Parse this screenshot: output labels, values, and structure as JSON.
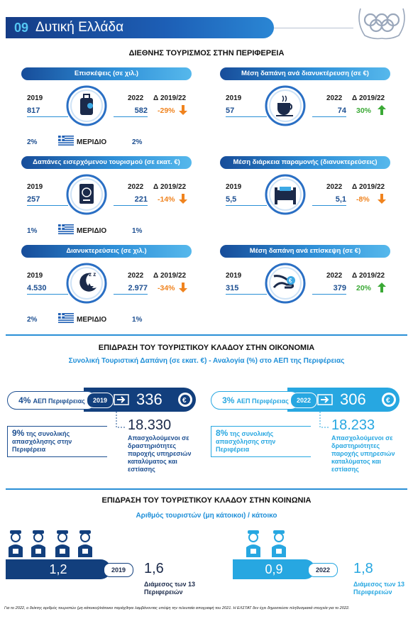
{
  "header": {
    "number": "09",
    "title": "Δυτική Ελλάδα"
  },
  "international": {
    "title": "ΔΙΕΘΝΗΣ ΤΟΥΡΙΣΜΟΣ ΣΤΗΝ ΠΕΡΙΦΕΡΕΙΑ",
    "cards": [
      {
        "title": "Επισκέψεις (σε χιλ.)",
        "year_a": "2019",
        "value_a": "817",
        "year_b": "2022",
        "value_b": "582",
        "change_label": "Δ 2019/22",
        "change": "-29%",
        "trend": "down",
        "share": {
          "a": "2%",
          "label": "ΜΕΡΙΔΙΟ",
          "b": "2%"
        }
      },
      {
        "title": "Μέση δαπάνη ανά διανυκτέρευση (σε €)",
        "year_a": "2019",
        "value_a": "57",
        "year_b": "2022",
        "value_b": "74",
        "change_label": "Δ 2019/22",
        "change": "30%",
        "trend": "up"
      },
      {
        "title": "Δαπάνες εισερχόμενου τουρισμού (σε εκατ. €)",
        "year_a": "2019",
        "value_a": "257",
        "year_b": "2022",
        "value_b": "221",
        "change_label": "Δ 2019/22",
        "change": "-14%",
        "trend": "down",
        "share": {
          "a": "1%",
          "label": "ΜΕΡΙΔΙΟ",
          "b": "1%"
        }
      },
      {
        "title": "Μέση διάρκεια παραμονής (διανυκτερεύσεις)",
        "year_a": "2019",
        "value_a": "5,5",
        "year_b": "2022",
        "value_b": "5,1",
        "change_label": "Δ 2019/22",
        "change": "-8%",
        "trend": "down"
      },
      {
        "title": "Διανυκτερεύσεις (σε χιλ.)",
        "year_a": "2019",
        "value_a": "4.530",
        "year_b": "2022",
        "value_b": "2.977",
        "change_label": "Δ 2019/22",
        "change": "-34%",
        "trend": "down",
        "share": {
          "a": "2%",
          "label": "ΜΕΡΙΔΙΟ",
          "b": "1%"
        }
      },
      {
        "title": "Μέση δαπάνη ανά επίσκεψη (σε €)",
        "year_a": "2019",
        "value_a": "315",
        "year_b": "2022",
        "value_b": "379",
        "change_label": "Δ 2019/22",
        "change": "20%",
        "trend": "up"
      }
    ]
  },
  "economy": {
    "title": "ΕΠΙΔΡΑΣΗ ΤΟΥ ΤΟΥΡΙΣΤΙΚΟΥ ΚΛΑΔΟΥ ΣΤΗΝ ΟΙΚΟΝΟΜΙΑ",
    "subtitle": "Συνολική Τουριστική Δαπάνη (σε εκατ. €) - Αναλογία (%) στο ΑΕΠ της Περιφέρειας",
    "panels": [
      {
        "gdp_pct": "4%",
        "gdp_label": "ΑΕΠ Περιφέρειας",
        "year": "2019",
        "spending": "336",
        "employment_pct": "9%",
        "employment_text": "της συνολικής απασχόλησης στην Περιφέρεια",
        "employed": "18.330",
        "employed_text": "Απασχολούμενοι σε δραστηριότητες παροχής υπηρεσιών καταλύματος και εστίασης"
      },
      {
        "gdp_pct": "3%",
        "gdp_label": "ΑΕΠ Περιφέρειας",
        "year": "2022",
        "spending": "306",
        "employment_pct": "8%",
        "employment_text": "της συνολικής απασχόλησης στην Περιφέρεια",
        "employed": "18.233",
        "employed_text": "Απασχολούμενοι σε δραστηριότητες παροχής υπηρεσιών καταλύματος και εστίασης"
      }
    ]
  },
  "society": {
    "title": "ΕΠΙΔΡΑΣΗ ΤΟΥ ΤΟΥΡΙΣΤΙΚΟΥ ΚΛΑΔΟΥ ΣΤΗΝ ΚΟΙΝΩΝΙΑ",
    "subtitle": "Αριθμός τουριστών (μη κάτοικοι) / κάτοικο",
    "panels": [
      {
        "value": "1,2",
        "year": "2019",
        "median": "1,6",
        "median_label": "Διάμεσος των 13 Περιφερειών"
      },
      {
        "value": "0,9",
        "year": "2022",
        "median": "1,8",
        "median_label": "Διάμεσος των 13 Περιφερειών"
      }
    ]
  },
  "footnote": "Για το 2022, ο δείκτης αριθμός τουριστών (μη κάτοικοι)/κάτοικο παράχθηκε λαμβάνοντας υπόψη την τελευταία απογραφή του 2021. Η ΕΛΣΤΑΤ δεν έχει δημοσιεύσει πληθυσμιακά στοιχεία για το 2022."
}
